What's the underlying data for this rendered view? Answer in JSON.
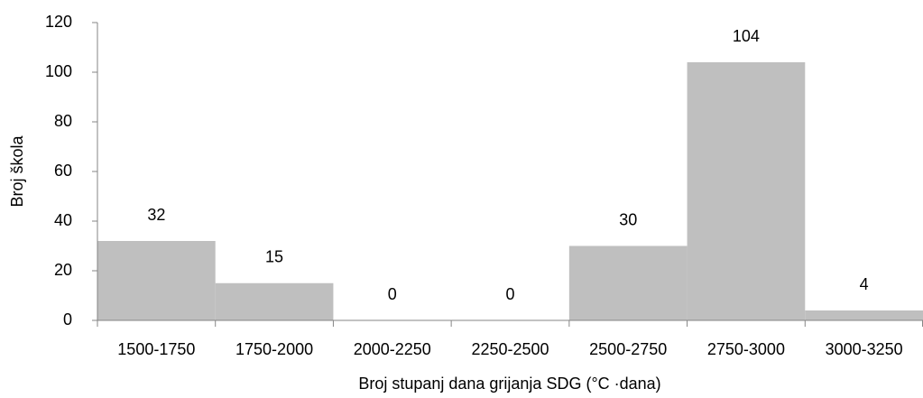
{
  "chart_data": {
    "type": "bar",
    "categories": [
      "1500-1750",
      "1750-2000",
      "2000-2250",
      "2250-2500",
      "2500-2750",
      "2750-3000",
      "3000-3250"
    ],
    "values": [
      32,
      15,
      0,
      0,
      30,
      104,
      4
    ],
    "color": "#bfbfbf",
    "x_label": "Broj stupanj dana grijanja SDG (°C ·dana)",
    "y_label": "Broj škola",
    "ylim": [
      0,
      120
    ],
    "yticks": [
      0,
      20,
      40,
      60,
      80,
      100,
      120
    ],
    "grid": false,
    "data_labels": true
  }
}
